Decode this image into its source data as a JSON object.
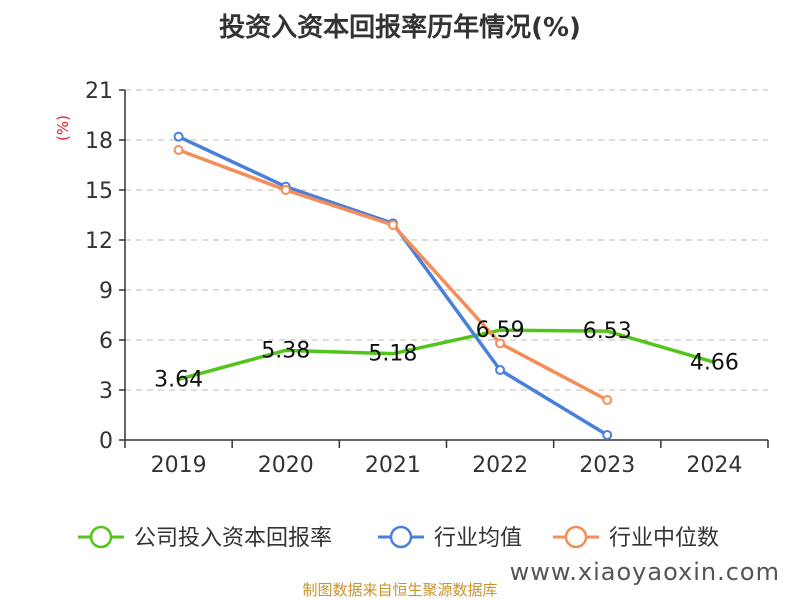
{
  "chart_data": {
    "type": "line",
    "title": "投资入资本回报率历年情况(%)",
    "ylabel": "(%)",
    "categories": [
      "2019",
      "2020",
      "2021",
      "2022",
      "2023",
      "2024"
    ],
    "ylim": [
      0,
      21
    ],
    "yticks": [
      0,
      3,
      6,
      9,
      12,
      15,
      18,
      21
    ],
    "grid": true,
    "legend_position": "bottom",
    "series": [
      {
        "name": "公司投入资本回报率",
        "color": "#52c41a",
        "values": [
          3.64,
          5.38,
          5.18,
          6.59,
          6.53,
          4.66
        ],
        "labels": [
          "3.64",
          "5.38",
          "5.18",
          "6.59",
          "6.53",
          "4.66"
        ],
        "markers": false
      },
      {
        "name": "行业均值",
        "color": "#4a7fdc",
        "values": [
          18.2,
          15.2,
          13.0,
          4.2,
          0.3,
          null
        ],
        "markers": true
      },
      {
        "name": "行业中位数",
        "color": "#f58d58",
        "values": [
          17.4,
          15.0,
          12.9,
          5.8,
          2.4,
          null
        ],
        "markers": true
      }
    ]
  },
  "footer": {
    "source": "制图数据来自恒生聚源数据库",
    "watermark": "www.xiaoyaoxin.com"
  }
}
